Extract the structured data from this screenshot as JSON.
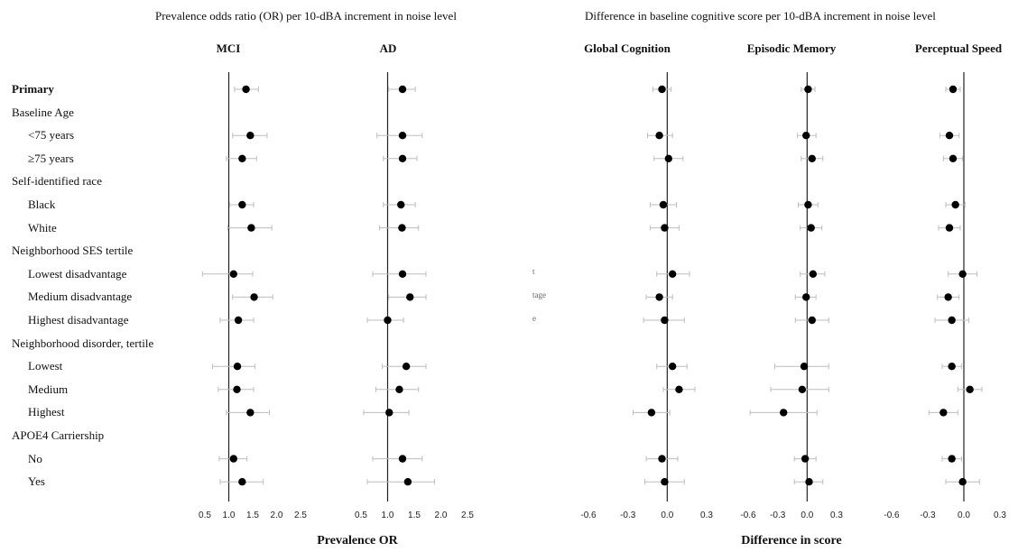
{
  "header": {
    "left_title": "Prevalence odds ratio (OR) per 10-dBA increment in noise level",
    "right_title": "Difference in baseline cognitive score per 10-dBA increment in noise level",
    "left_xlabel": "Prevalence OR",
    "right_xlabel": "Difference in score"
  },
  "clipped_fragments": [
    "t",
    "tage",
    "e"
  ],
  "rows": [
    {
      "label": "Primary",
      "style": "bold"
    },
    {
      "label": "Baseline Age",
      "style": "group"
    },
    {
      "label": "<75 years",
      "style": "sub"
    },
    {
      "label": "≥75 years",
      "style": "sub"
    },
    {
      "label": "Self-identified race",
      "style": "group"
    },
    {
      "label": "Black",
      "style": "sub"
    },
    {
      "label": "White",
      "style": "sub"
    },
    {
      "label": "Neighborhood SES tertile",
      "style": "group"
    },
    {
      "label": "Lowest disadvantage",
      "style": "sub"
    },
    {
      "label": "Medium disadvantage",
      "style": "sub"
    },
    {
      "label": "Highest disadvantage",
      "style": "sub"
    },
    {
      "label": "Neighborhood disorder, tertile",
      "style": "group"
    },
    {
      "label": "Lowest",
      "style": "sub"
    },
    {
      "label": "Medium",
      "style": "sub"
    },
    {
      "label": "Highest",
      "style": "sub"
    },
    {
      "label": "APOE4 Carriership",
      "style": "group"
    },
    {
      "label": "No",
      "style": "sub"
    },
    {
      "label": "Yes",
      "style": "sub"
    }
  ],
  "chart_data": [
    {
      "type": "forest",
      "title": "MCI",
      "ref": 1.0,
      "xlim": [
        0.5,
        2.5
      ],
      "ticks": [
        "0.5",
        "1.0",
        "1.5",
        "2.0",
        "2.5"
      ],
      "points": [
        {
          "row": 0,
          "est": 1.36,
          "lo": 1.12,
          "hi": 1.62
        },
        {
          "row": 2,
          "est": 1.45,
          "lo": 1.08,
          "hi": 1.8
        },
        {
          "row": 3,
          "est": 1.28,
          "lo": 0.95,
          "hi": 1.58
        },
        {
          "row": 5,
          "est": 1.28,
          "lo": 1.02,
          "hi": 1.52
        },
        {
          "row": 6,
          "est": 1.47,
          "lo": 0.98,
          "hi": 1.9
        },
        {
          "row": 8,
          "est": 1.1,
          "lo": 0.45,
          "hi": 1.5
        },
        {
          "row": 9,
          "est": 1.53,
          "lo": 1.08,
          "hi": 1.92
        },
        {
          "row": 10,
          "est": 1.2,
          "lo": 0.82,
          "hi": 1.52
        },
        {
          "row": 12,
          "est": 1.18,
          "lo": 0.66,
          "hi": 1.55
        },
        {
          "row": 13,
          "est": 1.17,
          "lo": 0.78,
          "hi": 1.52
        },
        {
          "row": 14,
          "est": 1.45,
          "lo": 0.95,
          "hi": 1.85
        },
        {
          "row": 16,
          "est": 1.1,
          "lo": 0.8,
          "hi": 1.38
        },
        {
          "row": 17,
          "est": 1.28,
          "lo": 0.82,
          "hi": 1.72
        }
      ]
    },
    {
      "type": "forest",
      "title": "AD",
      "ref": 1.0,
      "xlim": [
        0.5,
        2.5
      ],
      "ticks": [
        "0.5",
        "1.0",
        "1.5",
        "2.0",
        "2.5"
      ],
      "points": [
        {
          "row": 0,
          "est": 1.28,
          "lo": 1.02,
          "hi": 1.52
        },
        {
          "row": 2,
          "est": 1.28,
          "lo": 0.8,
          "hi": 1.65
        },
        {
          "row": 3,
          "est": 1.28,
          "lo": 0.92,
          "hi": 1.55
        },
        {
          "row": 5,
          "est": 1.25,
          "lo": 0.92,
          "hi": 1.52
        },
        {
          "row": 6,
          "est": 1.27,
          "lo": 0.85,
          "hi": 1.58
        },
        {
          "row": 8,
          "est": 1.28,
          "lo": 0.72,
          "hi": 1.72
        },
        {
          "row": 9,
          "est": 1.42,
          "lo": 1.02,
          "hi": 1.72
        },
        {
          "row": 10,
          "est": 1.0,
          "lo": 0.62,
          "hi": 1.3
        },
        {
          "row": 12,
          "est": 1.35,
          "lo": 0.9,
          "hi": 1.72
        },
        {
          "row": 13,
          "est": 1.22,
          "lo": 0.78,
          "hi": 1.58
        },
        {
          "row": 14,
          "est": 1.03,
          "lo": 0.55,
          "hi": 1.4
        },
        {
          "row": 16,
          "est": 1.28,
          "lo": 0.72,
          "hi": 1.65
        },
        {
          "row": 17,
          "est": 1.38,
          "lo": 0.62,
          "hi": 1.88
        }
      ]
    },
    {
      "type": "forest",
      "title": "Global Cognition",
      "ref": 0.0,
      "xlim": [
        -0.6,
        0.3
      ],
      "ticks": [
        "-0.6",
        "-0.3",
        "0.0",
        "0.3"
      ],
      "points": [
        {
          "row": 0,
          "est": -0.04,
          "lo": -0.11,
          "hi": 0.03
        },
        {
          "row": 2,
          "est": -0.06,
          "lo": -0.15,
          "hi": 0.04
        },
        {
          "row": 3,
          "est": 0.01,
          "lo": -0.1,
          "hi": 0.12
        },
        {
          "row": 5,
          "est": -0.03,
          "lo": -0.13,
          "hi": 0.07
        },
        {
          "row": 6,
          "est": -0.02,
          "lo": -0.13,
          "hi": 0.09
        },
        {
          "row": 8,
          "est": 0.04,
          "lo": -0.08,
          "hi": 0.17
        },
        {
          "row": 9,
          "est": -0.06,
          "lo": -0.16,
          "hi": 0.04
        },
        {
          "row": 10,
          "est": -0.02,
          "lo": -0.18,
          "hi": 0.13
        },
        {
          "row": 12,
          "est": 0.04,
          "lo": -0.08,
          "hi": 0.15
        },
        {
          "row": 13,
          "est": 0.09,
          "lo": -0.03,
          "hi": 0.21
        },
        {
          "row": 14,
          "est": -0.12,
          "lo": -0.26,
          "hi": 0.02
        },
        {
          "row": 16,
          "est": -0.04,
          "lo": -0.16,
          "hi": 0.08
        },
        {
          "row": 17,
          "est": -0.02,
          "lo": -0.17,
          "hi": 0.13
        }
      ]
    },
    {
      "type": "forest",
      "title": "Episodic Memory",
      "ref": 0.0,
      "xlim": [
        -0.6,
        0.3
      ],
      "ticks": [
        "-0.6",
        "-0.3",
        "0.0",
        "0.3"
      ],
      "points": [
        {
          "row": 0,
          "est": 0.01,
          "lo": -0.06,
          "hi": 0.08
        },
        {
          "row": 2,
          "est": -0.01,
          "lo": -0.1,
          "hi": 0.09
        },
        {
          "row": 3,
          "est": 0.05,
          "lo": -0.06,
          "hi": 0.16
        },
        {
          "row": 5,
          "est": 0.01,
          "lo": -0.09,
          "hi": 0.11
        },
        {
          "row": 6,
          "est": 0.04,
          "lo": -0.07,
          "hi": 0.15
        },
        {
          "row": 8,
          "est": 0.06,
          "lo": -0.07,
          "hi": 0.18
        },
        {
          "row": 9,
          "est": -0.01,
          "lo": -0.12,
          "hi": 0.09
        },
        {
          "row": 10,
          "est": 0.05,
          "lo": -0.12,
          "hi": 0.22
        },
        {
          "row": 12,
          "est": -0.03,
          "lo": -0.33,
          "hi": 0.22
        },
        {
          "row": 13,
          "est": -0.05,
          "lo": -0.37,
          "hi": 0.22
        },
        {
          "row": 14,
          "est": -0.24,
          "lo": -0.58,
          "hi": 0.1
        },
        {
          "row": 16,
          "est": -0.02,
          "lo": -0.13,
          "hi": 0.09
        },
        {
          "row": 17,
          "est": 0.02,
          "lo": -0.13,
          "hi": 0.16
        }
      ]
    },
    {
      "type": "forest",
      "title": "Perceptual Speed",
      "ref": 0.0,
      "xlim": [
        -0.6,
        0.3
      ],
      "ticks": [
        "-0.6",
        "-0.3",
        "0.0",
        "0.3"
      ],
      "points": [
        {
          "row": 0,
          "est": -0.09,
          "lo": -0.15,
          "hi": -0.03
        },
        {
          "row": 2,
          "est": -0.12,
          "lo": -0.2,
          "hi": -0.04
        },
        {
          "row": 3,
          "est": -0.09,
          "lo": -0.17,
          "hi": -0.01
        },
        {
          "row": 5,
          "est": -0.07,
          "lo": -0.15,
          "hi": 0.01
        },
        {
          "row": 6,
          "est": -0.12,
          "lo": -0.21,
          "hi": -0.03
        },
        {
          "row": 8,
          "est": -0.01,
          "lo": -0.13,
          "hi": 0.11
        },
        {
          "row": 9,
          "est": -0.13,
          "lo": -0.22,
          "hi": -0.04
        },
        {
          "row": 10,
          "est": -0.1,
          "lo": -0.24,
          "hi": 0.04
        },
        {
          "row": 12,
          "est": -0.1,
          "lo": -0.18,
          "hi": -0.02
        },
        {
          "row": 13,
          "est": 0.05,
          "lo": -0.05,
          "hi": 0.15
        },
        {
          "row": 14,
          "est": -0.17,
          "lo": -0.29,
          "hi": -0.05
        },
        {
          "row": 16,
          "est": -0.1,
          "lo": -0.18,
          "hi": -0.02
        },
        {
          "row": 17,
          "est": -0.01,
          "lo": -0.15,
          "hi": 0.13
        }
      ]
    }
  ]
}
